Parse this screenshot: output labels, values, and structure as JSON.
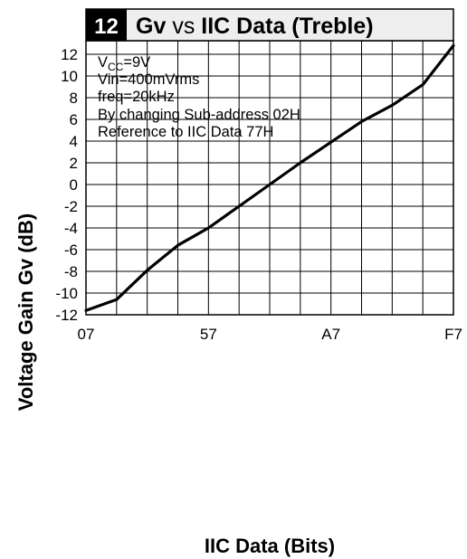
{
  "chart_data": {
    "type": "line",
    "figure_number": "12",
    "title": {
      "part1": "Gv",
      "part2": "vs",
      "part3": "IIC Data (Treble)"
    },
    "xlabel": "IIC Data (Bits)",
    "ylabel": "Voltage Gain Gv (dB)",
    "x_tick_labels": [
      "07",
      "57",
      "A7",
      "F7"
    ],
    "x_tick_positions": [
      0,
      4,
      8,
      12
    ],
    "x_range": [
      0,
      12
    ],
    "y_ticks": [
      -12,
      -10,
      -8,
      -6,
      -4,
      -2,
      0,
      2,
      4,
      6,
      8,
      10,
      12
    ],
    "ylim": [
      -12,
      13
    ],
    "grid": true,
    "notes": {
      "vcc_main": "V",
      "vcc_sub": "CC",
      "vcc_value": "=9V",
      "vin": "Vin=400mVrms",
      "freq": "freq=20kHz",
      "line4": "By changing Sub-address 02H",
      "line5": "Reference to IIC Data 77H"
    },
    "series": [
      {
        "x": [
          0,
          1,
          2,
          3,
          4,
          5,
          6,
          7,
          8,
          9,
          10,
          11,
          12
        ],
        "values": [
          -11.6,
          -10.6,
          -7.9,
          -5.6,
          -4.0,
          -2.0,
          0.0,
          2.0,
          3.9,
          5.8,
          7.3,
          9.2,
          12.8
        ]
      }
    ]
  }
}
